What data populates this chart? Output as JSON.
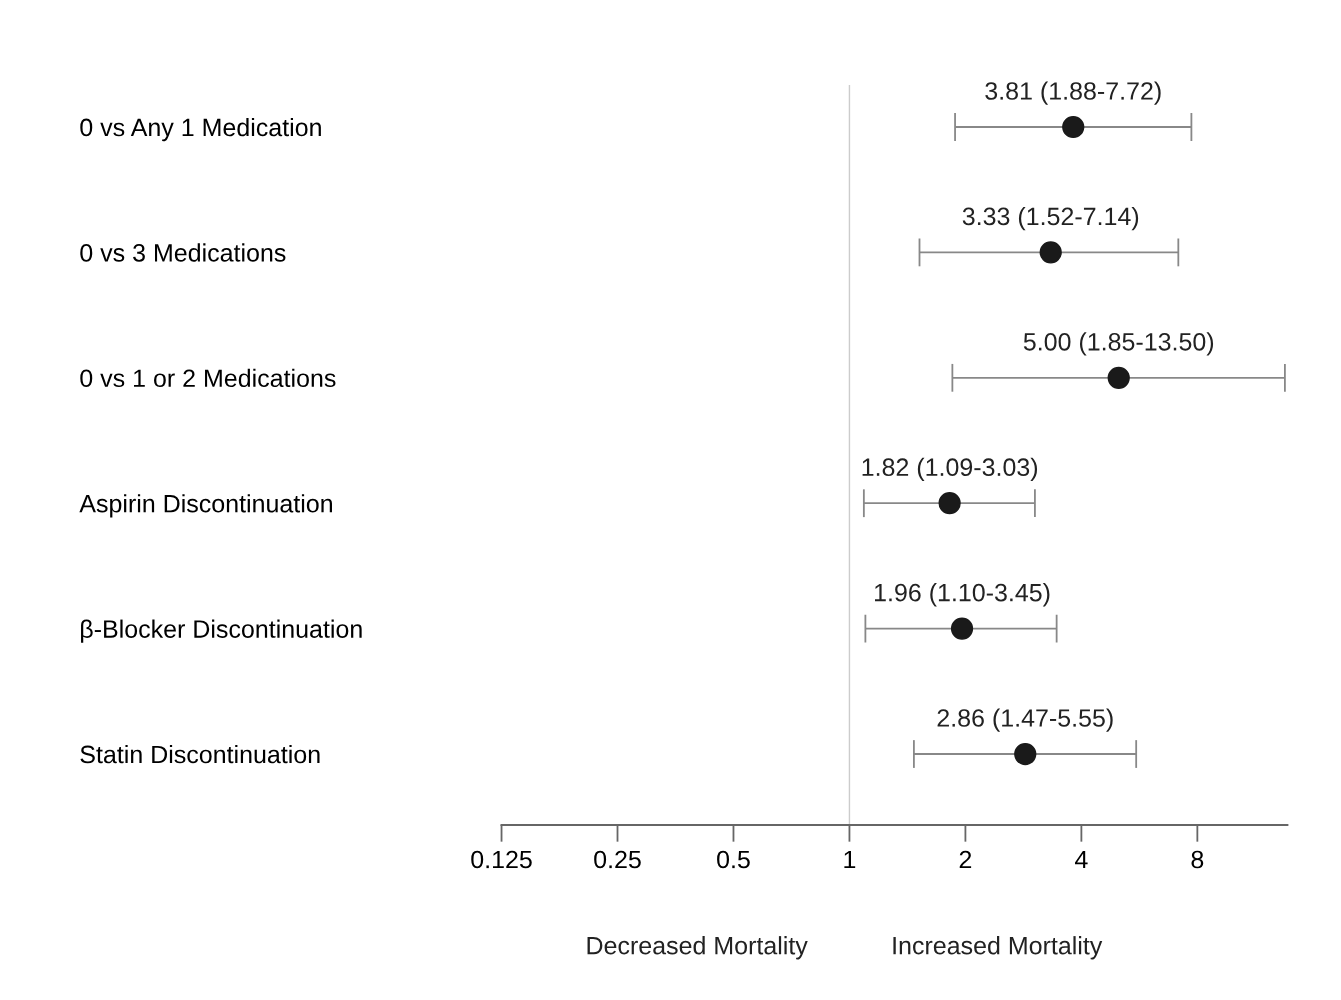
{
  "chart_data": {
    "type": "scatter",
    "orientation": "horizontal",
    "log": "x",
    "categories": [
      "0 vs Any 1 Medication",
      "0 vs 3 Medications",
      "0 vs 1 or 2 Medications",
      "Aspirin Discontinuation",
      "β-Blocker Discontinuation",
      "Statin Discontinuation"
    ],
    "values": [
      3.81,
      3.33,
      5.0,
      1.82,
      1.96,
      2.86
    ],
    "errors": [
      [
        1.88,
        7.72
      ],
      [
        1.52,
        7.14
      ],
      [
        1.85,
        13.5
      ],
      [
        1.09,
        3.03
      ],
      [
        1.1,
        3.45
      ],
      [
        1.47,
        5.55
      ]
    ],
    "value_labels": [
      "3.81 (1.88-7.72)",
      "3.33 (1.52-7.14)",
      "5.00 (1.85-13.50)",
      "1.82 (1.09-3.03)",
      "1.96 (1.10-3.45)",
      "2.86 (1.47-5.55)"
    ],
    "color": "#1a1a1a",
    "marker": "circle",
    "grid": false,
    "legend": false,
    "xlim": [
      0.125,
      13.7
    ],
    "xticks": [
      0.125,
      0.25,
      0.5,
      1,
      2,
      4,
      8
    ],
    "ref_lines": [
      {
        "axis": "x",
        "value": 1,
        "color": "#cccccc"
      }
    ],
    "annotations": [
      "Decreased Mortality",
      "Increased Mortality"
    ]
  }
}
